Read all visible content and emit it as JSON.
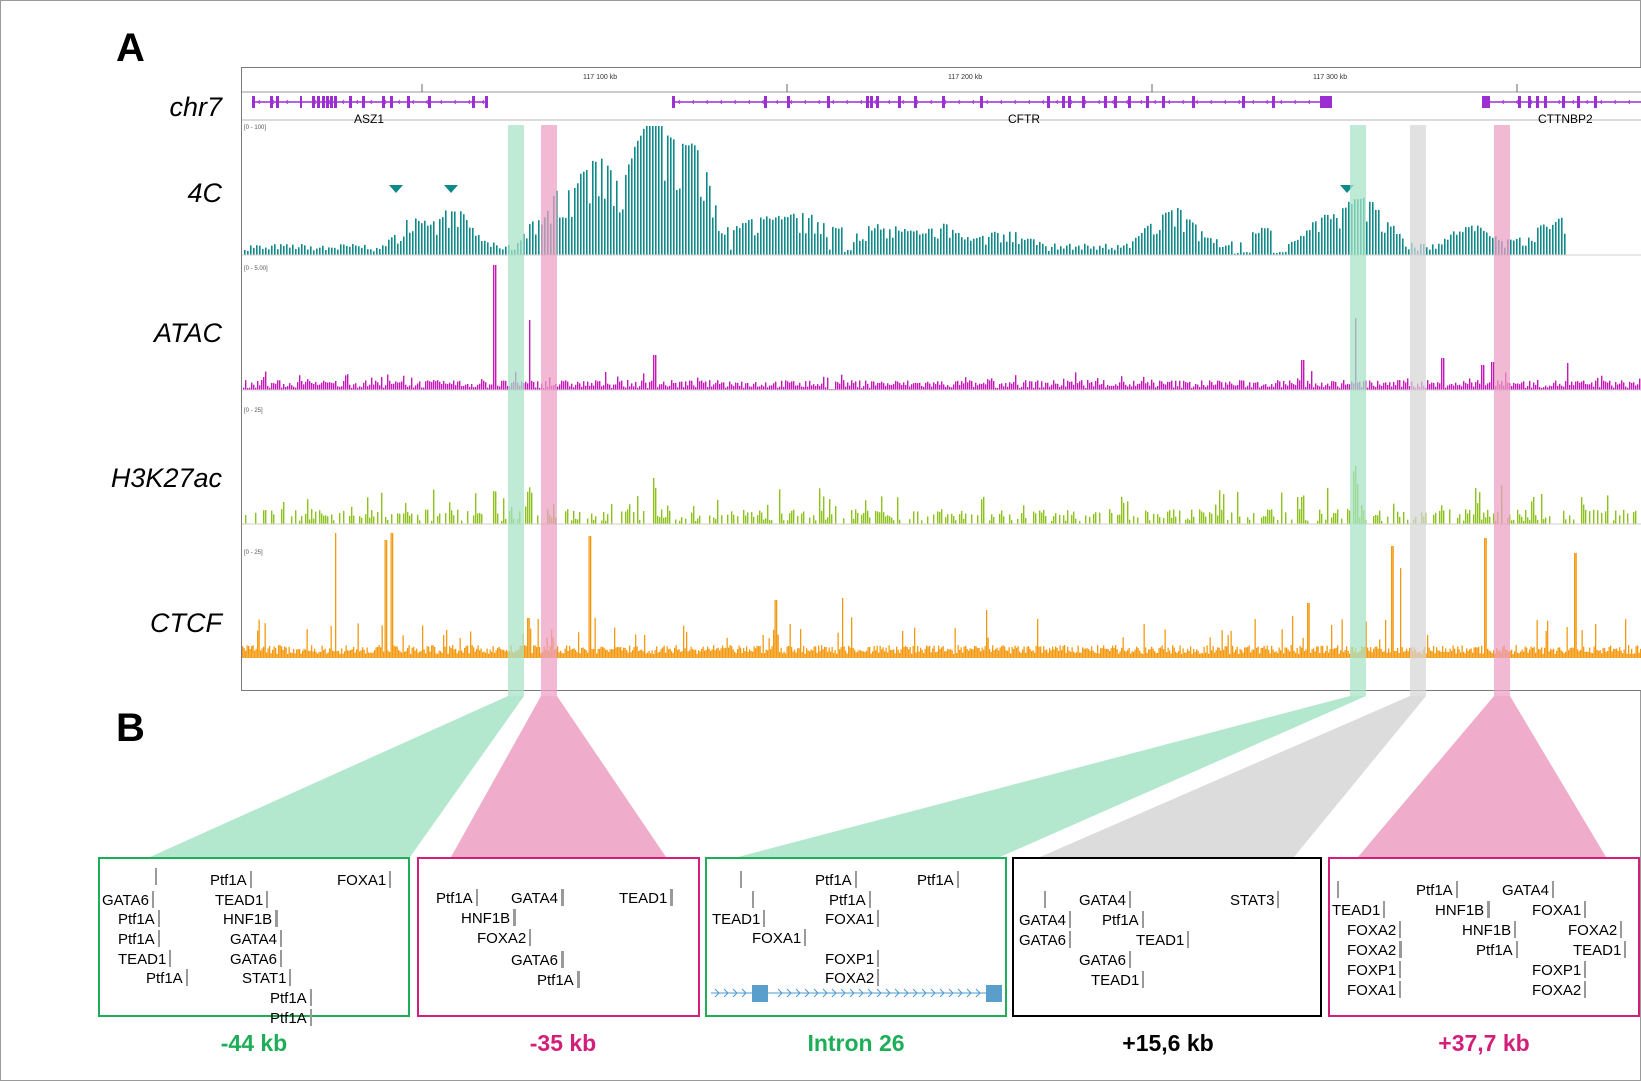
{
  "panels": {
    "a": "A",
    "b": "B"
  },
  "tracks": {
    "chr": "chr7",
    "fourc": "4C",
    "atac": "ATAC",
    "h3k27ac": "H3K27ac",
    "ctcf": "CTCF"
  },
  "ruler": {
    "t1": "117 100 kb",
    "t2": "117 200 kb",
    "t3": "117 300 kb"
  },
  "genes": {
    "asz1": "ASZ1",
    "cftr": "CFTR",
    "cttnbp2": "CTTNBP2"
  },
  "data_ranges": {
    "fourc": "[0 - 100]",
    "atac": "[0 - 5.00]",
    "h3k27ac": "[0 - 25]",
    "ctcf": "[0 - 25]"
  },
  "colors": {
    "fourc": "#0f8a8a",
    "atac": "#c418b8",
    "h3k27ac": "#8cc21a",
    "ctcf": "#f39a12",
    "gene": "#9b2fd2",
    "green_highlight": "#a6e3c6",
    "pink_highlight": "#ec9ec2",
    "grey_highlight": "#d6d6d6",
    "green_text": "#1fae58",
    "pink_text": "#d31f7a",
    "black_text": "#000000"
  },
  "regions": [
    {
      "label": "-44 kb",
      "color": "green",
      "tfs": [
        "GATA6",
        "Ptf1A",
        "Ptf1A",
        "TEAD1",
        "Ptf1A",
        "Ptf1A",
        "TEAD1",
        "HNF1B",
        "GATA4",
        "GATA6",
        "STAT1",
        "Ptf1A",
        "Ptf1A",
        "FOXA1"
      ]
    },
    {
      "label": "-35 kb",
      "color": "pink",
      "tfs": [
        "Ptf1A",
        "GATA4",
        "TEAD1",
        "HNF1B",
        "FOXA2",
        "GATA6",
        "Ptf1A"
      ]
    },
    {
      "label": "Intron 26",
      "color": "green",
      "tfs": [
        "Ptf1A",
        "Ptf1A",
        "Ptf1A",
        "TEAD1",
        "FOXA1",
        "FOXA1",
        "FOXP1",
        "FOXA2"
      ]
    },
    {
      "label": "+15,6 kb",
      "color": "black",
      "tfs": [
        "GATA4",
        "STAT3",
        "GATA4",
        "Ptf1A",
        "GATA6",
        "TEAD1",
        "GATA6",
        "TEAD1"
      ]
    },
    {
      "label": "+37,7 kb",
      "color": "pink",
      "tfs": [
        "Ptf1A",
        "GATA4",
        "TEAD1",
        "HNF1B",
        "FOXA1",
        "FOXA2",
        "HNF1B",
        "FOXA2",
        "FOXA2",
        "Ptf1A",
        "TEAD1",
        "FOXP1",
        "FOXP1",
        "FOXA1",
        "FOXA2"
      ]
    }
  ]
}
